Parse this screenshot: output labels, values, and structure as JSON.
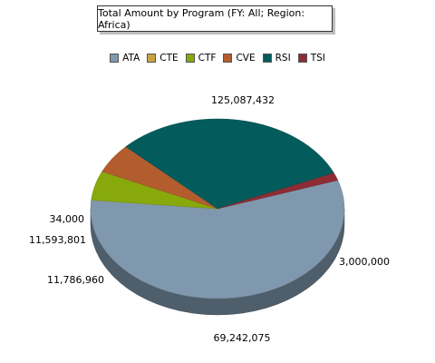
{
  "chart_data": {
    "type": "pie",
    "title": "Total Amount by Program (FY: All; Region: Africa)",
    "categories": [
      "ATA",
      "CTE",
      "CTF",
      "CVE",
      "RSI",
      "TSI"
    ],
    "values": [
      125087432,
      34000,
      11593801,
      11786960,
      69242075,
      3000000
    ],
    "data_labels": [
      "125,087,432",
      "34,000",
      "11,593,801",
      "11,786,960",
      "69,242,075",
      "3,000,000"
    ],
    "colors": [
      "#8098ad",
      "#c8a440",
      "#87a90c",
      "#b35d2e",
      "#035b5b",
      "#8e2c35"
    ],
    "legend_position": "top",
    "three_d": true
  }
}
